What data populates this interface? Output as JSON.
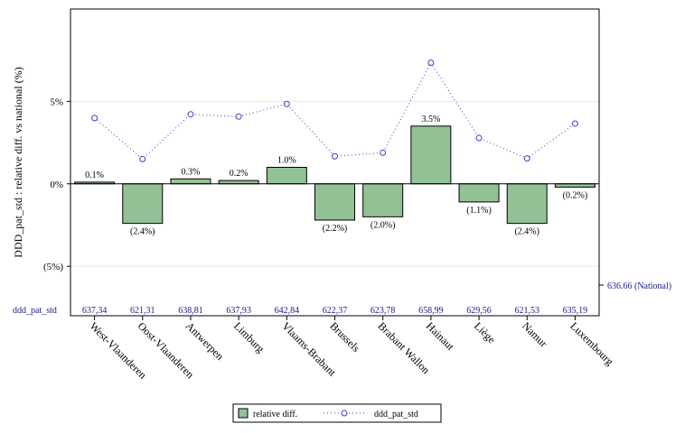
{
  "chart_data": {
    "type": "bar",
    "categories": [
      "West-Vlaanderen",
      "Oost-Vlaanderen",
      "Antwerpen",
      "Limburg",
      "Vlaams-Brabant",
      "Brussels",
      "Brabant Wallon",
      "Hainaut",
      "Liège",
      "Namur",
      "Luxembourg"
    ],
    "series": [
      {
        "name": "relative diff.",
        "type": "bar",
        "values": [
          0.1,
          -2.4,
          0.3,
          0.2,
          1.0,
          -2.2,
          -2.0,
          3.5,
          -1.1,
          -2.4,
          -0.2
        ],
        "labels": [
          "0.1%",
          "(2.4%)",
          "0.3%",
          "0.2%",
          "1.0%",
          "(2.2%)",
          "(2.0%)",
          "3.5%",
          "(1.1%)",
          "(2.4%)",
          "(0.2%)"
        ],
        "color": "#93c196"
      },
      {
        "name": "ddd_pat_std",
        "type": "line",
        "values": [
          637.34,
          621.31,
          638.81,
          637.93,
          642.84,
          622.37,
          623.78,
          658.99,
          629.56,
          621.53,
          635.19
        ],
        "labels": [
          "637,34",
          "621,31",
          "638,81",
          "637,93",
          "642,84",
          "622,37",
          "623,78",
          "658,99",
          "629,56",
          "621,53",
          "635,19"
        ],
        "color": "#3c3cc8"
      }
    ],
    "ylabel": "DDD_pat_std : relative diff. vs national (%)",
    "yticks": [
      5,
      0,
      -5
    ],
    "ytick_labels": [
      "5%",
      "0%",
      "(5%)"
    ],
    "ylim": [
      -8.0,
      10.6
    ],
    "secondary_ylim": [
      560,
      680
    ],
    "row_label": "ddd_pat_std",
    "reference_label": "636.66 (National)",
    "grid": true,
    "legend_position": "bottom"
  }
}
